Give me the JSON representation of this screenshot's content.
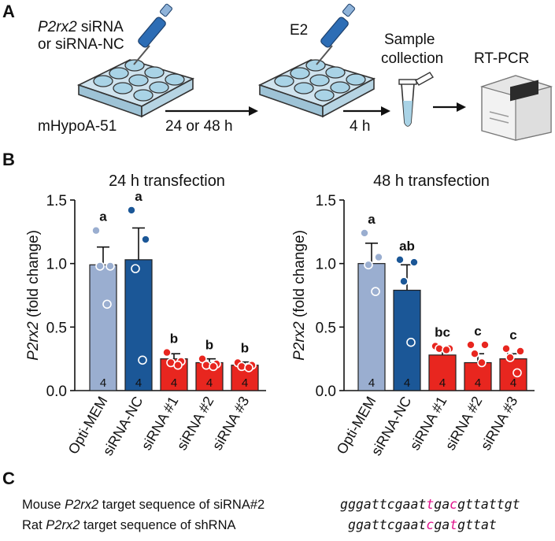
{
  "panel_labels": {
    "a": "A",
    "b": "B",
    "c": "C"
  },
  "schematic": {
    "treatment": [
      "P2rx2 siRNA",
      "or siRNA-NC"
    ],
    "treatment_gene": "P2rx2",
    "cell_line": "mHypoA-51",
    "time1": "24 or 48 h",
    "hormone": "E2",
    "time2": "4 h",
    "sample_label": [
      "Sample",
      "collection"
    ],
    "assay": "RT-PCR"
  },
  "chart_data": [
    {
      "type": "bar",
      "title": "24 h transfection",
      "ylabel": "P2rx2 (fold change)",
      "ylabel_gene": "P2rx2",
      "ylabel_rest": " (fold change)",
      "ylim": [
        0,
        1.5
      ],
      "yticks": [
        "0.0",
        "0.5",
        "1.0",
        "1.5"
      ],
      "categories": [
        "Opti-MEM",
        "siRNA-NC",
        "siRNA #1",
        "siRNA #2",
        "siRNA #3"
      ],
      "values": [
        0.99,
        1.03,
        0.25,
        0.22,
        0.2
      ],
      "sem": [
        0.14,
        0.25,
        0.04,
        0.03,
        0.025
      ],
      "n": [
        "4",
        "4",
        "4",
        "4",
        "4"
      ],
      "letters": [
        "a",
        "a",
        "b",
        "b",
        "b"
      ],
      "points": [
        [
          1.26,
          0.98,
          0.98,
          0.68
        ],
        [
          1.42,
          1.19,
          0.96,
          0.24
        ],
        [
          0.3,
          0.23,
          0.22,
          0.2
        ],
        [
          0.25,
          0.21,
          0.2,
          0.19
        ],
        [
          0.22,
          0.2,
          0.19,
          0.18
        ]
      ],
      "colors": [
        "#9aaed0",
        "#1b5797",
        "#e8261f",
        "#e8261f",
        "#e8261f"
      ],
      "point_colors": [
        "#9aaed0",
        "#1b5797",
        "#e8261f",
        "#e8261f",
        "#e8261f"
      ]
    },
    {
      "type": "bar",
      "title": "48 h transfection",
      "ylabel": "P2rx2 (fold change)",
      "ylabel_gene": "P2rx2",
      "ylabel_rest": " (fold change)",
      "ylim": [
        0,
        1.5
      ],
      "yticks": [
        "0.0",
        "0.5",
        "1.0",
        "1.5"
      ],
      "categories": [
        "Opti-MEM",
        "siRNA-NC",
        "siRNA #1",
        "siRNA #2",
        "siRNA #3"
      ],
      "values": [
        1.0,
        0.79,
        0.28,
        0.22,
        0.25
      ],
      "sem": [
        0.16,
        0.2,
        0.03,
        0.07,
        0.04
      ],
      "n": [
        "4",
        "4",
        "4",
        "4",
        "4"
      ],
      "letters": [
        "a",
        "ab",
        "bc",
        "c",
        "c"
      ],
      "points": [
        [
          1.24,
          1.05,
          0.99,
          0.78
        ],
        [
          1.03,
          1.01,
          0.86,
          0.38
        ],
        [
          0.35,
          0.33,
          0.33,
          0.32
        ],
        [
          0.36,
          0.36,
          0.29,
          0.22
        ],
        [
          0.33,
          0.31,
          0.26,
          0.14
        ]
      ],
      "colors": [
        "#9aaed0",
        "#1b5797",
        "#e8261f",
        "#e8261f",
        "#e8261f"
      ],
      "point_colors": [
        "#9aaed0",
        "#1b5797",
        "#e8261f",
        "#e8261f",
        "#e8261f"
      ]
    }
  ],
  "sequences": {
    "mouse_label_prefix": "Mouse ",
    "mouse_label_gene": "P2rx2",
    "mouse_label_suffix": " target sequence of siRNA#2",
    "mouse_seq": "gggattcgaattgacgttattgt",
    "mouse_highlight": [
      11,
      14
    ],
    "rat_label_prefix": "Rat ",
    "rat_label_gene": "P2rx2",
    "rat_label_suffix": " target sequence of shRNA",
    "rat_seq": "ggattcgaatcgatgttat",
    "rat_highlight": [
      10,
      13
    ],
    "highlight_color": "#e0138c"
  }
}
